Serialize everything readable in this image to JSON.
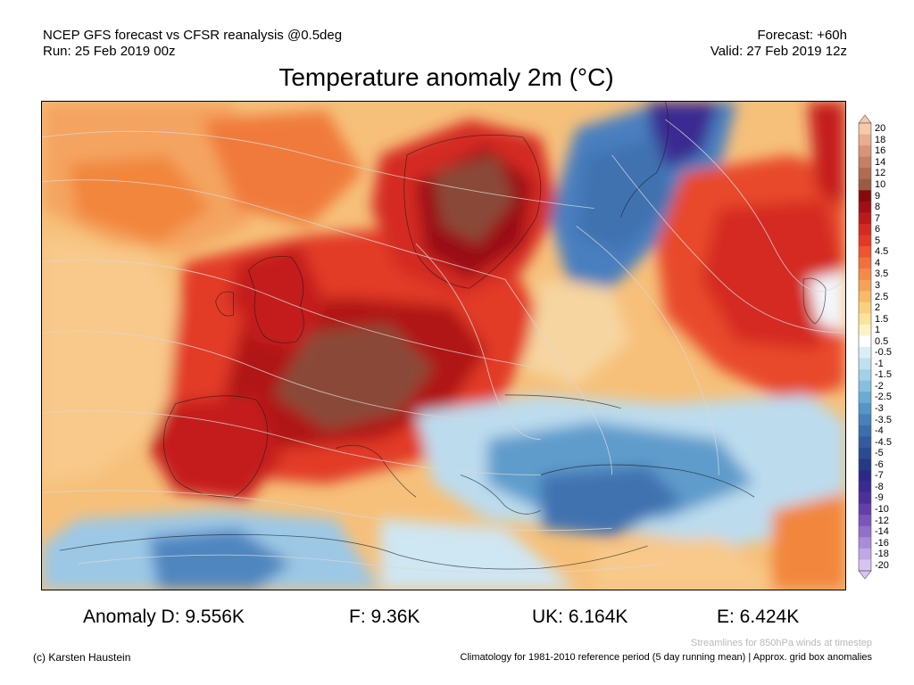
{
  "header": {
    "model_line": "NCEP GFS forecast vs CFSR reanalysis @0.5deg",
    "run_line": "Run: 25 Feb 2019 00z",
    "forecast_line": "Forecast: +60h",
    "valid_line": "Valid: 27 Feb 2019 12z"
  },
  "title": "Temperature anomaly 2m (°C)",
  "legend": {
    "labels": [
      "20",
      "18",
      "16",
      "14",
      "12",
      "10",
      "9",
      "8",
      "7",
      "6",
      "5",
      "4.5",
      "4",
      "3.5",
      "3",
      "2.5",
      "2",
      "1.5",
      "1",
      "0.5",
      "-0.5",
      "-1",
      "-1.5",
      "-2",
      "-2.5",
      "-3",
      "-3.5",
      "-4",
      "-4.5",
      "-5",
      "-6",
      "-7",
      "-8",
      "-9",
      "-10",
      "-12",
      "-14",
      "-16",
      "-18",
      "-20"
    ],
    "colors": [
      "#f5c9a9",
      "#e8ad90",
      "#d79575",
      "#c57f63",
      "#b16b52",
      "#9b5a44",
      "#840a0e",
      "#a00f14",
      "#bb1a1a",
      "#d42a22",
      "#e23a26",
      "#ec5530",
      "#f2703c",
      "#f48a48",
      "#f6a158",
      "#f8b968",
      "#fad07e",
      "#fce39b",
      "#fef3c4",
      "#ffffff",
      "#dbeef8",
      "#c0e0f0",
      "#a3d0e8",
      "#86bfe0",
      "#6babd4",
      "#5696c7",
      "#4782b9",
      "#3d6eac",
      "#345b9f",
      "#2b4a92",
      "#243a85",
      "#2a2a86",
      "#3b2a92",
      "#4d2f9c",
      "#6340a8",
      "#7a56b8",
      "#9070c8",
      "#a88cd8",
      "#c0a8e6",
      "#d6c4f2"
    ]
  },
  "stats": {
    "d": "Anomaly D: 9.556K",
    "f": "F: 9.36K",
    "uk": "UK: 6.164K",
    "e": "E: 6.424K"
  },
  "footer": {
    "streamlines_note": "Streamlines for 850hPa winds at timestep",
    "copyright": "(c) Karsten Haustein",
    "climatology_note": "Climatology for 1981-2010 reference period (5 day running mean) | Approx. grid box anomalies"
  },
  "colors": {
    "anom_dark_brown": "#8a4a38",
    "anom_dark_red": "#9b0f12",
    "anom_red": "#d42a22",
    "anom_orange": "#f2703c",
    "anom_light_orange": "#f6c07a",
    "anom_cold_light": "#bcdcee",
    "anom_cold_blue": "#3f72b0",
    "anom_cold_deep": "#3b2a92"
  }
}
